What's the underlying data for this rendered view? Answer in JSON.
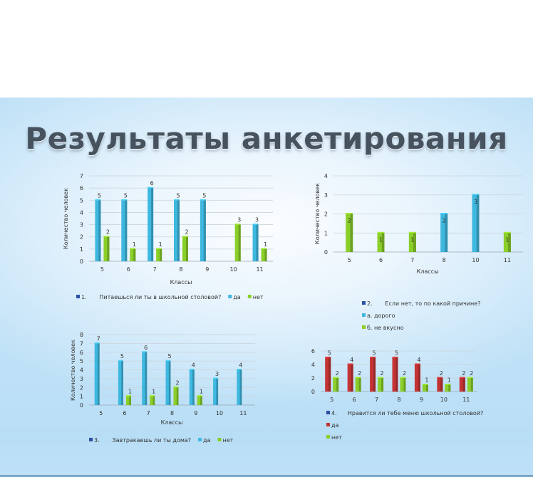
{
  "slide": {
    "title": "Результаты анкетирования"
  },
  "colors": {
    "cyan": "#3fb8e0",
    "green": "#8bcf2a",
    "red": "#c43434",
    "blue_marker": "#2d4fa2"
  },
  "chart_data": [
    {
      "type": "bar",
      "categories": [
        "5",
        "6",
        "7",
        "8",
        "9",
        "10",
        "11"
      ],
      "ylim": [
        0,
        7
      ],
      "yticks": [
        "0",
        "1",
        "2",
        "3",
        "4",
        "5",
        "6",
        "7"
      ],
      "ylabel": "Количество человек",
      "xlabel": "Классы",
      "series": [
        {
          "name": "да",
          "color": "cyan",
          "values": [
            5,
            5,
            6,
            5,
            5,
            null,
            3
          ]
        },
        {
          "name": "нет",
          "color": "green",
          "values": [
            2,
            1,
            1,
            2,
            null,
            3,
            1
          ]
        }
      ],
      "legend": {
        "question": "1.       Питаешься ли ты в школьной столовой?",
        "entries": [
          "да",
          "нет"
        ]
      }
    },
    {
      "type": "bar",
      "categories": [
        "5",
        "6",
        "7",
        "8",
        "10",
        "11"
      ],
      "ylim": [
        0,
        4
      ],
      "yticks": [
        "0",
        "1",
        "2",
        "3",
        "4"
      ],
      "ylabel": "Количество человек",
      "xlabel": "Классы",
      "series": [
        {
          "name": "а. дорого",
          "color": "cyan",
          "values": [
            null,
            null,
            null,
            2,
            3,
            null
          ]
        },
        {
          "name": "б. не вкусно",
          "color": "green",
          "values": [
            2,
            1,
            1,
            null,
            null,
            1
          ]
        }
      ],
      "legend": {
        "question": "2.       Если нет, то по какой причине?",
        "entries": [
          "а. дорого",
          "б. не вкусно"
        ]
      }
    },
    {
      "type": "bar",
      "categories": [
        "5",
        "6",
        "7",
        "8",
        "9",
        "10",
        "11"
      ],
      "ylim": [
        0,
        8
      ],
      "yticks": [
        "0",
        "1",
        "2",
        "3",
        "4",
        "5",
        "6",
        "7",
        "8"
      ],
      "ylabel": "Количество человек",
      "xlabel": "Классы",
      "series": [
        {
          "name": "да",
          "color": "cyan",
          "values": [
            7,
            5,
            6,
            5,
            4,
            3,
            4
          ]
        },
        {
          "name": "нет",
          "color": "green",
          "values": [
            null,
            1,
            1,
            2,
            1,
            null,
            null
          ]
        }
      ],
      "legend": {
        "question": "3.       Завтракаешь ли ты дома?",
        "entries": [
          "да",
          "нет"
        ]
      }
    },
    {
      "type": "bar",
      "categories": [
        "5",
        "6",
        "7",
        "8",
        "9",
        "10",
        "11"
      ],
      "ylim": [
        0,
        6
      ],
      "yticks": [
        "0",
        "2",
        "4",
        "6"
      ],
      "ylabel": "",
      "xlabel": "",
      "series": [
        {
          "name": "да",
          "color": "red",
          "values": [
            5,
            4,
            5,
            5,
            4,
            2,
            2
          ]
        },
        {
          "name": "нет",
          "color": "green",
          "values": [
            2,
            2,
            2,
            2,
            1,
            1,
            2
          ]
        }
      ],
      "legend": {
        "question": "4.      Нравится ли тебе меню школьной столовой?",
        "entries": [
          "да",
          "нет"
        ]
      }
    }
  ]
}
